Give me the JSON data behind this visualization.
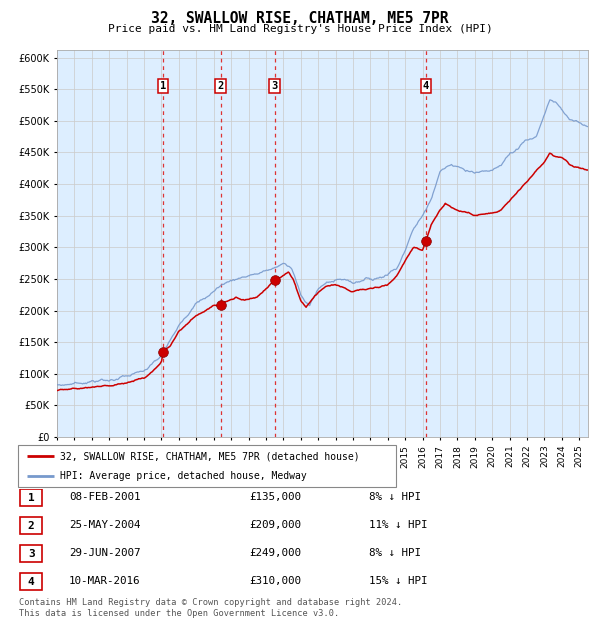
{
  "title": "32, SWALLOW RISE, CHATHAM, ME5 7PR",
  "subtitle": "Price paid vs. HM Land Registry's House Price Index (HPI)",
  "background_color": "#ffffff",
  "plot_bg_color": "#ddeeff",
  "grid_color": "#cccccc",
  "ylim": [
    0,
    612500
  ],
  "yticks": [
    0,
    50000,
    100000,
    150000,
    200000,
    250000,
    300000,
    350000,
    400000,
    450000,
    500000,
    550000,
    600000
  ],
  "ytick_labels": [
    "£0",
    "£50K",
    "£100K",
    "£150K",
    "£200K",
    "£250K",
    "£300K",
    "£350K",
    "£400K",
    "£450K",
    "£500K",
    "£550K",
    "£600K"
  ],
  "xlim_start": 1995.0,
  "xlim_end": 2025.5,
  "red_line_color": "#cc0000",
  "blue_line_color": "#7799cc",
  "marker_color": "#cc0000",
  "dashed_line_color": "#dd3333",
  "sale_markers": [
    {
      "year": 2001.1,
      "price": 135000,
      "label": "1"
    },
    {
      "year": 2004.4,
      "price": 209000,
      "label": "2"
    },
    {
      "year": 2007.5,
      "price": 249000,
      "label": "3"
    },
    {
      "year": 2016.2,
      "price": 310000,
      "label": "4"
    }
  ],
  "table_rows": [
    {
      "num": "1",
      "date": "08-FEB-2001",
      "price": "£135,000",
      "pct": "8% ↓ HPI"
    },
    {
      "num": "2",
      "date": "25-MAY-2004",
      "price": "£209,000",
      "pct": "11% ↓ HPI"
    },
    {
      "num": "3",
      "date": "29-JUN-2007",
      "price": "£249,000",
      "pct": "8% ↓ HPI"
    },
    {
      "num": "4",
      "date": "10-MAR-2016",
      "price": "£310,000",
      "pct": "15% ↓ HPI"
    }
  ],
  "legend_red": "32, SWALLOW RISE, CHATHAM, ME5 7PR (detached house)",
  "legend_blue": "HPI: Average price, detached house, Medway",
  "footer": "Contains HM Land Registry data © Crown copyright and database right 2024.\nThis data is licensed under the Open Government Licence v3.0."
}
